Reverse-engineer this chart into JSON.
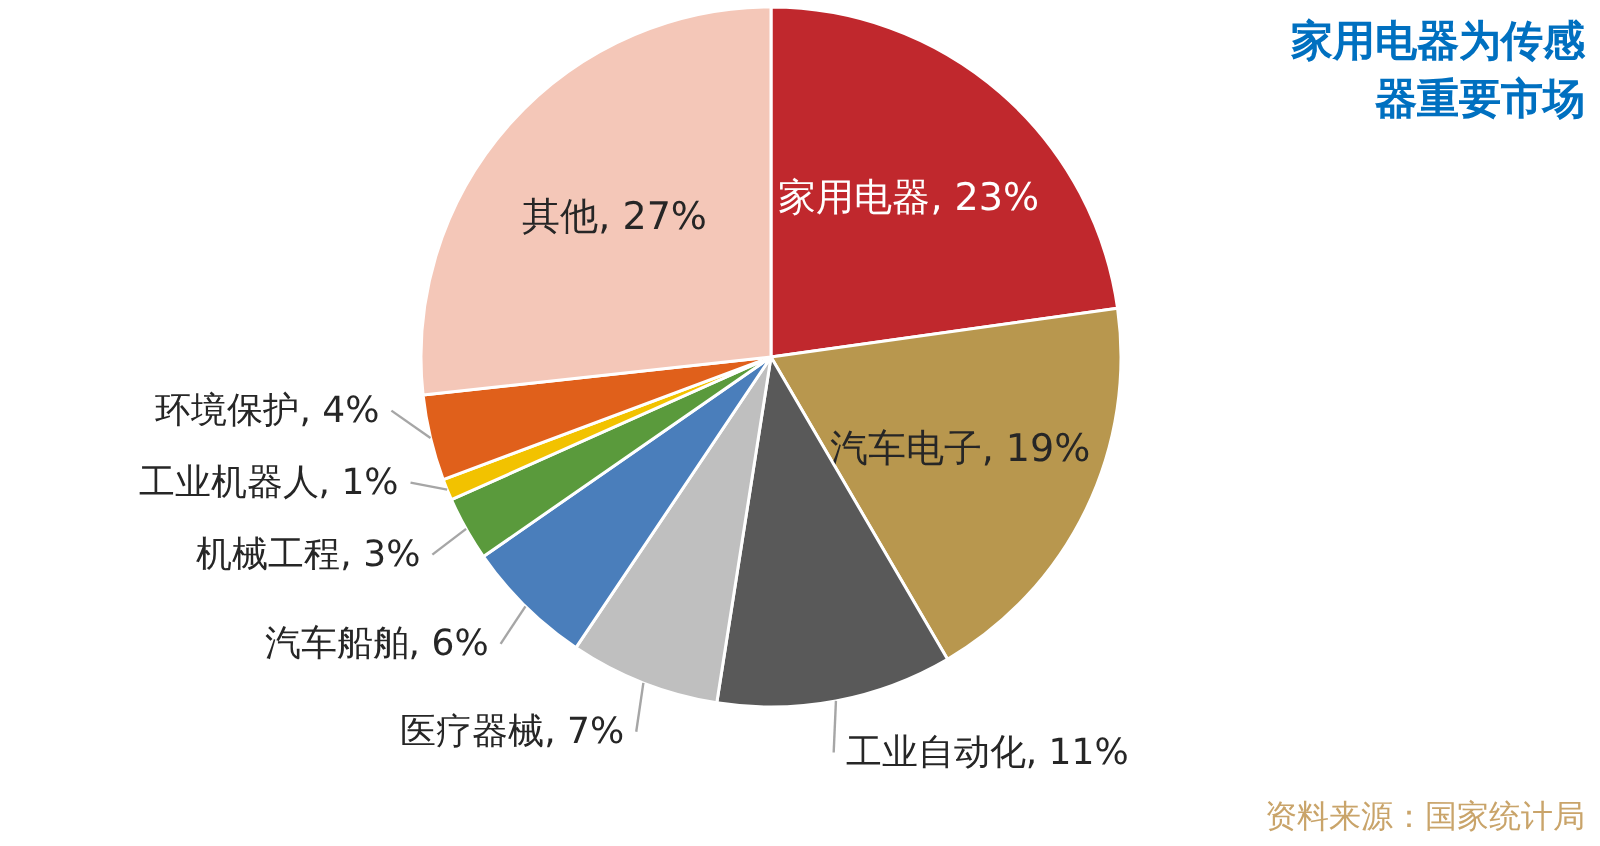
{
  "chart_data": {
    "type": "pie",
    "title": "家用电器为传感器重要市场",
    "categories": [
      "家用电器",
      "汽车电子",
      "工业自动化",
      "医疗器械",
      "汽车船舶",
      "机械工程",
      "工业机器人",
      "环境保护",
      "其他"
    ],
    "values": [
      23,
      19,
      11,
      7,
      6,
      3,
      1,
      4,
      27
    ],
    "value_labels": [
      "23%",
      "19%",
      "11%",
      "7%",
      "6%",
      "3%",
      "1%",
      "4%",
      "27%"
    ],
    "colors": [
      "#c0282d",
      "#b8974e",
      "#595959",
      "#bfbfbf",
      "#4a7ebb",
      "#5a9a3c",
      "#f2c200",
      "#e0601b",
      "#f4c7b8"
    ],
    "annotations": [
      "资料来源：国家统计局"
    ]
  }
}
